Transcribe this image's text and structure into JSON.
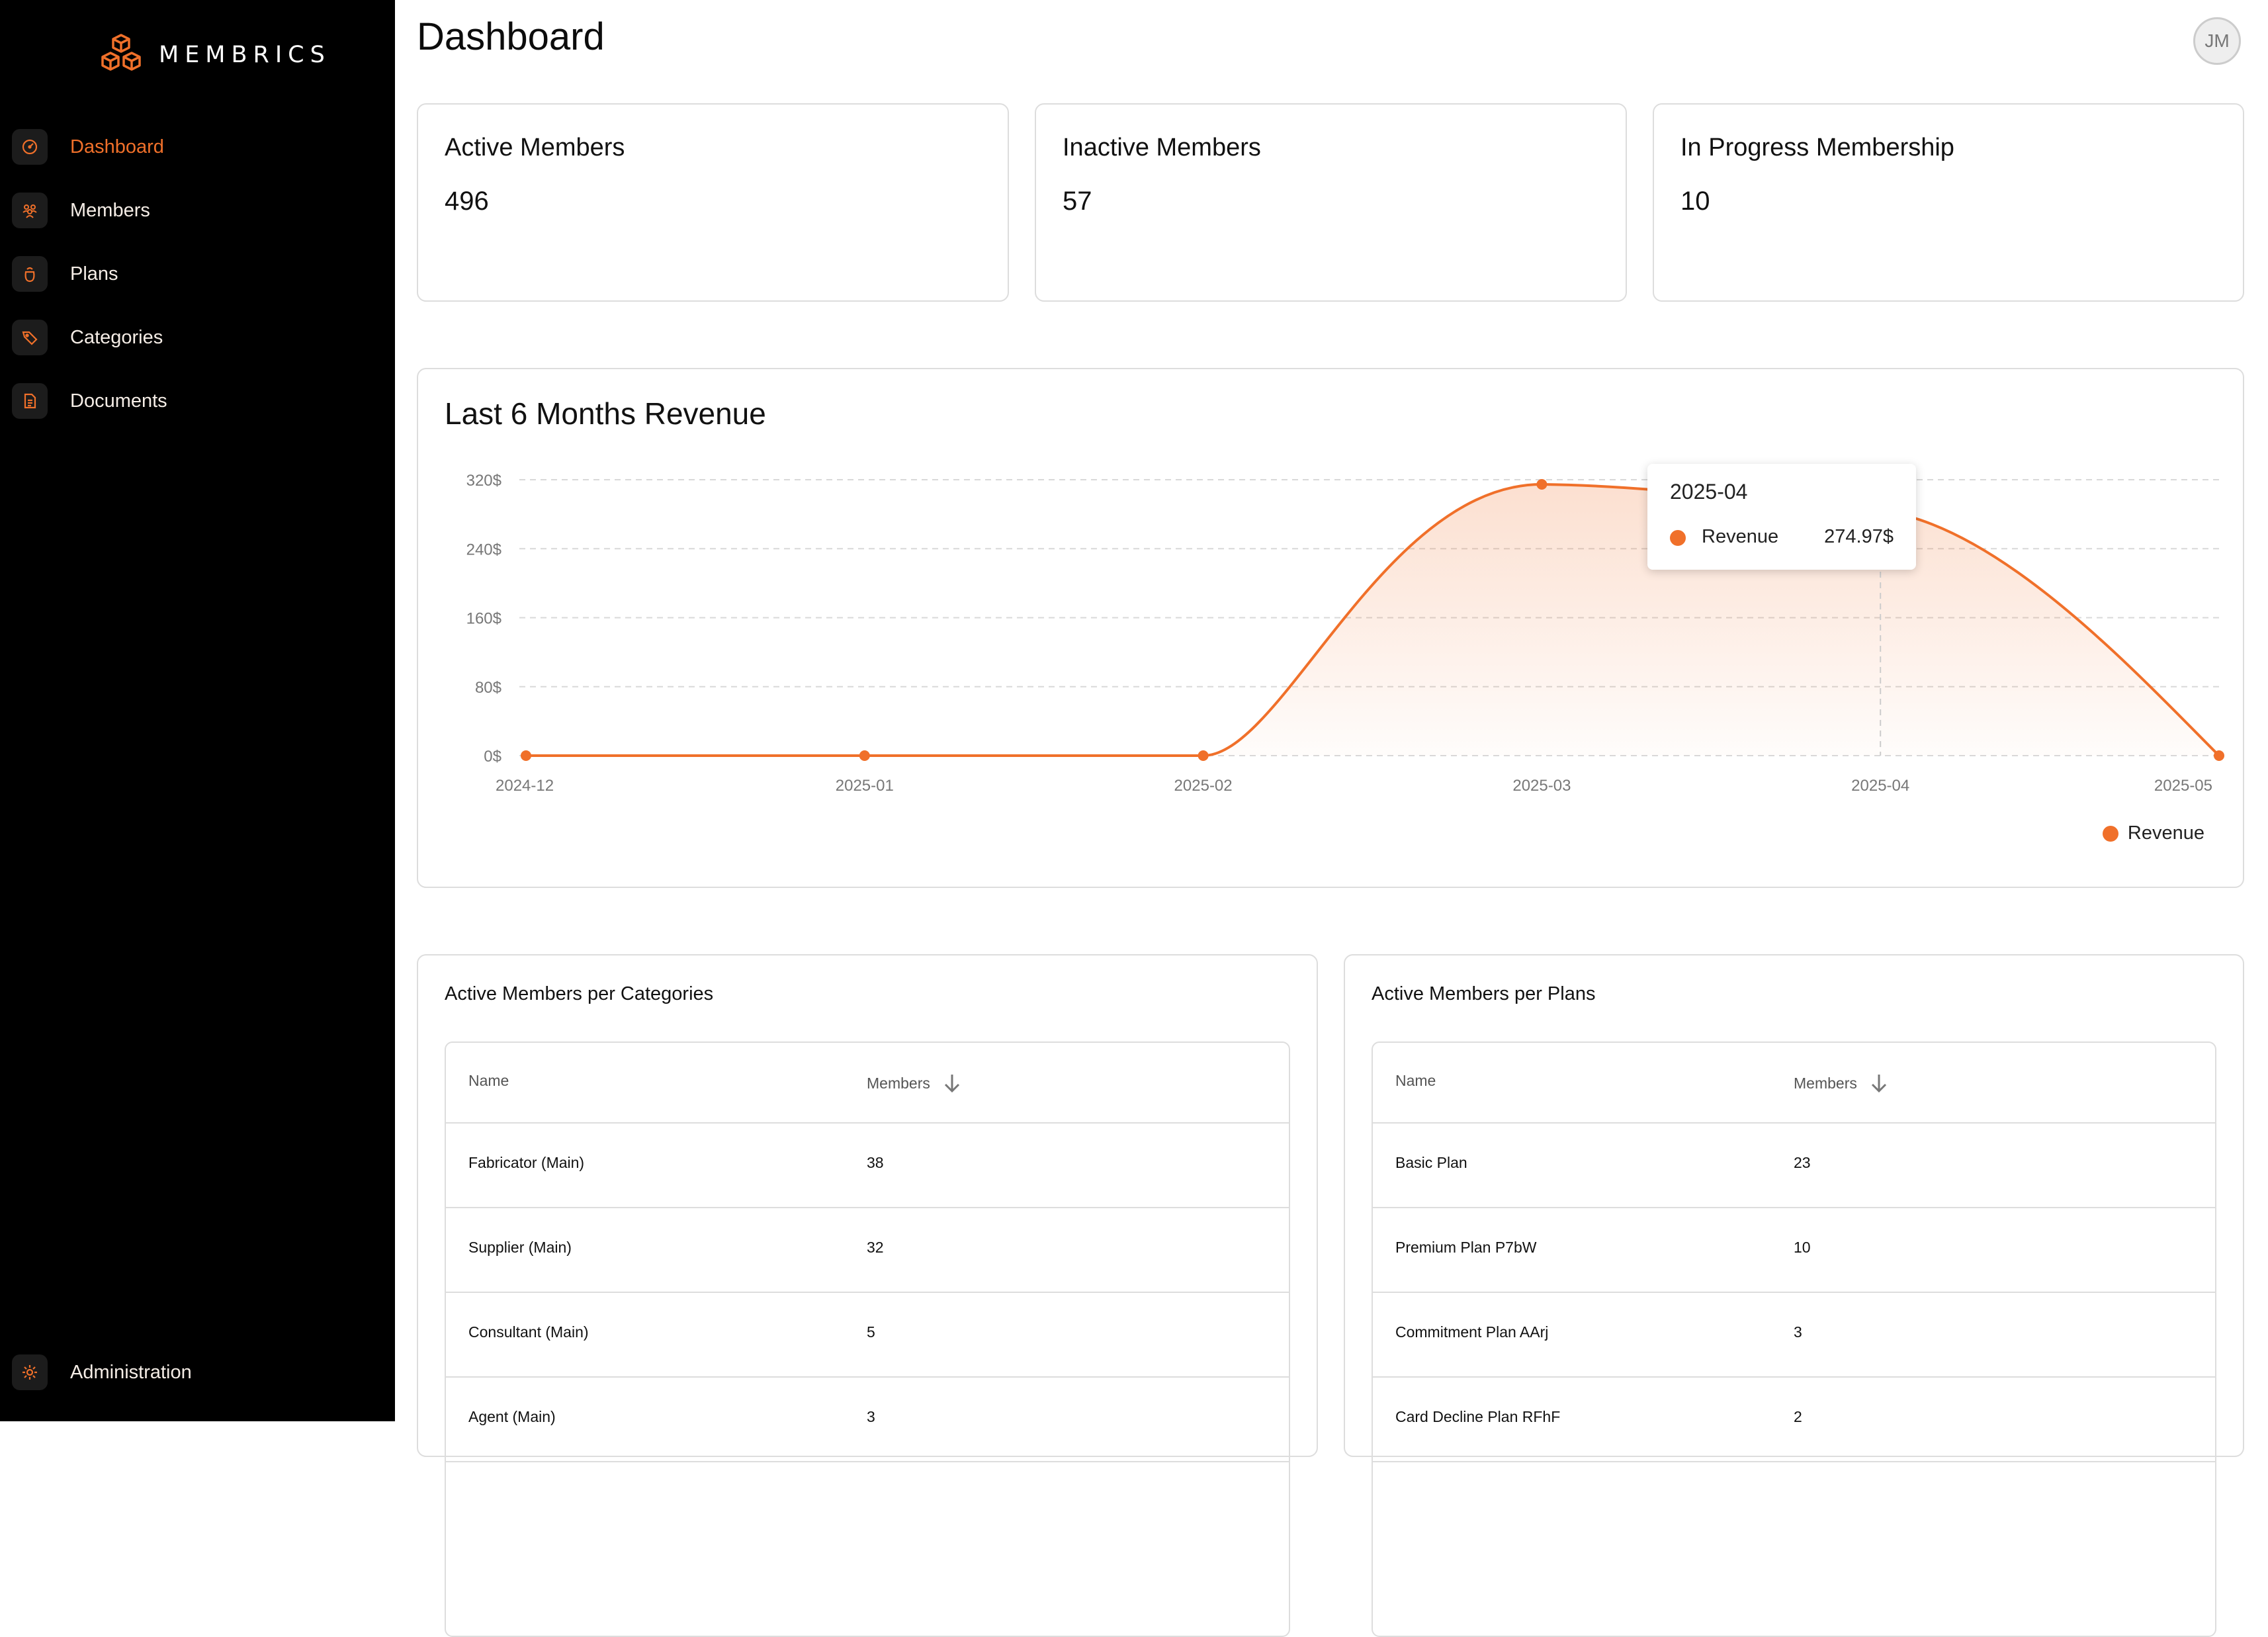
{
  "app": {
    "brand": "MEMBRICS",
    "user_initials": "JM"
  },
  "sidebar": {
    "items": [
      {
        "label": "Dashboard",
        "icon": "gauge-icon",
        "active": true
      },
      {
        "label": "Members",
        "icon": "users-icon"
      },
      {
        "label": "Plans",
        "icon": "bag-icon"
      },
      {
        "label": "Categories",
        "icon": "tag-icon"
      },
      {
        "label": "Documents",
        "icon": "document-icon"
      }
    ],
    "footer": {
      "label": "Administration",
      "icon": "gear-icon"
    }
  },
  "page": {
    "title": "Dashboard"
  },
  "stats": [
    {
      "title": "Active Members",
      "value": "496"
    },
    {
      "title": "Inactive Members",
      "value": "57"
    },
    {
      "title": "In Progress Membership",
      "value": "10"
    }
  ],
  "revenue": {
    "title": "Last 6 Months Revenue",
    "tooltip": {
      "title": "2025-04",
      "series": "Revenue",
      "value": "274.97$"
    },
    "legend": "Revenue"
  },
  "chart_data": {
    "type": "area",
    "title": "Last 6 Months Revenue",
    "categories": [
      "2024-12",
      "2025-01",
      "2025-02",
      "2025-03",
      "2025-04",
      "2025-05"
    ],
    "series": [
      {
        "name": "Revenue",
        "values": [
          0,
          0,
          0,
          308,
          274.97,
          0
        ]
      }
    ],
    "yticks": [
      "0$",
      "80$",
      "160$",
      "240$",
      "320$"
    ],
    "ylim": [
      0,
      320
    ],
    "grid": true,
    "legend": "bottom-right",
    "color": "#f0702a"
  },
  "categories_table": {
    "title": "Active Members per Categories",
    "columns": [
      "Name",
      "Members"
    ],
    "rows": [
      [
        "Fabricator (Main)",
        "38"
      ],
      [
        "Supplier (Main)",
        "32"
      ],
      [
        "Consultant (Main)",
        "5"
      ],
      [
        "Agent (Main)",
        "3"
      ]
    ]
  },
  "plans_table": {
    "title": "Active Members per Plans",
    "columns": [
      "Name",
      "Members"
    ],
    "rows": [
      [
        "Basic Plan",
        "23"
      ],
      [
        "Premium Plan P7bW",
        "10"
      ],
      [
        "Commitment Plan AArj",
        "3"
      ],
      [
        "Card Decline Plan RFhF",
        "2"
      ]
    ]
  }
}
